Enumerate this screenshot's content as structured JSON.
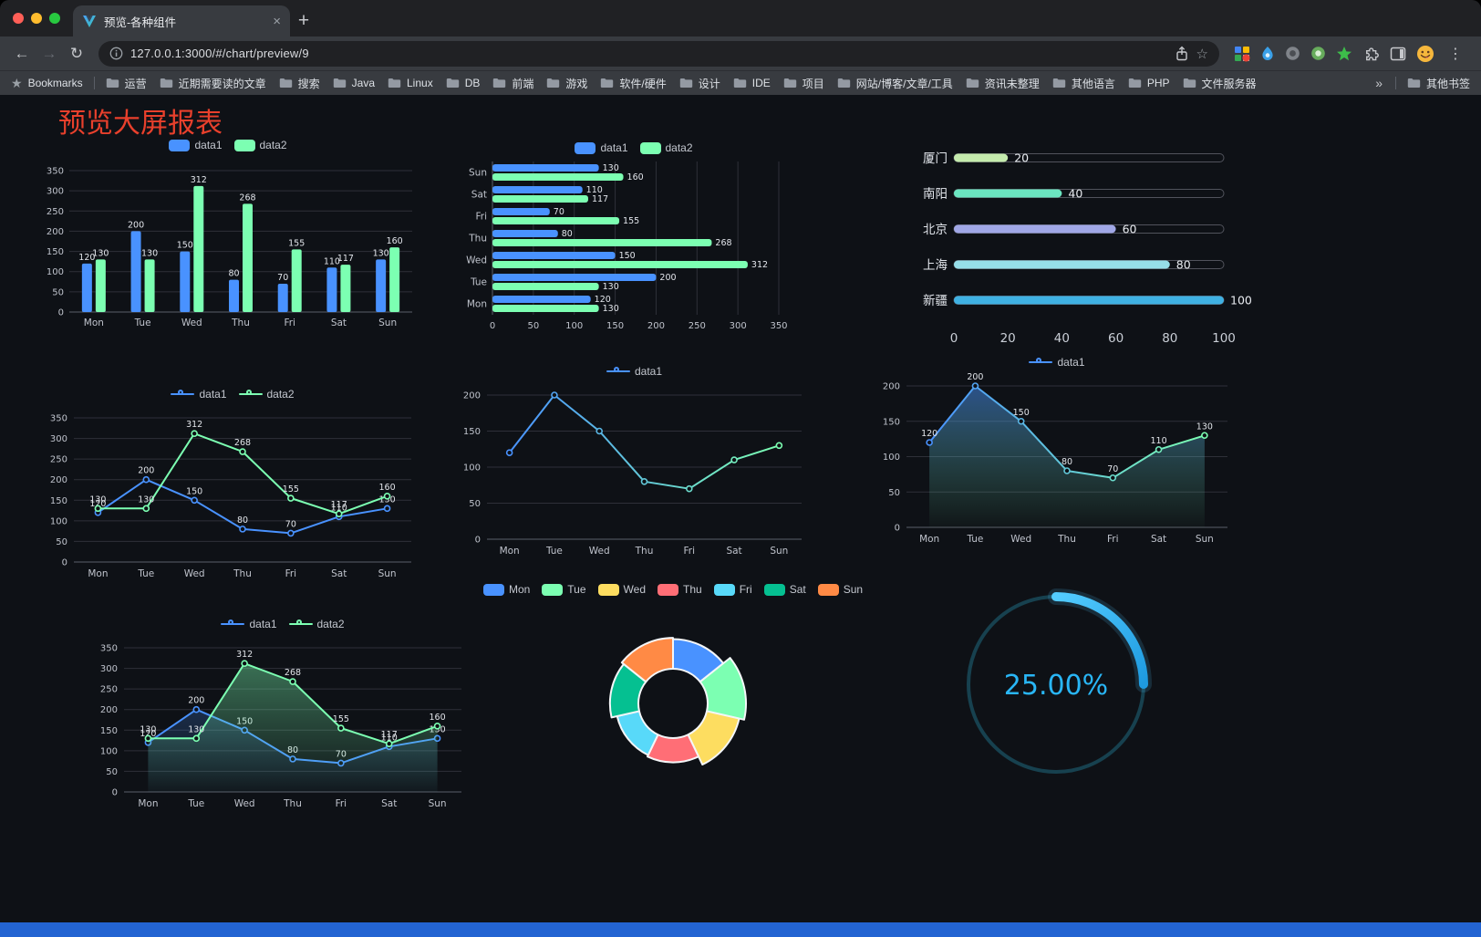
{
  "theme": {
    "page_bg": "#0e1116",
    "footer_bar": "#2364d2",
    "title_color": "#e8402c"
  },
  "browser": {
    "tab_title": "预览-各种组件",
    "url": "127.0.0.1:3000/#/chart/preview/9",
    "bookmarks_label": "Bookmarks",
    "bookmark_folders": [
      "运营",
      "近期需要读的文章",
      "搜索",
      "Java",
      "Linux",
      "DB",
      "前端",
      "游戏",
      "软件/硬件",
      "设计",
      "IDE",
      "项目",
      "网站/博客/文章/工具",
      "资讯未整理",
      "其他语言",
      "PHP",
      "文件服务器"
    ],
    "overflow_chevron": "»",
    "other_bookmarks_label": "其他书签",
    "new_tab_label": "+",
    "close_tab_label": "×",
    "back_label": "←",
    "forward_label": "→",
    "reload_label": "↻",
    "star_label": "☆",
    "menu_label": "⋮"
  },
  "page": {
    "title": "预览大屏报表"
  },
  "chart_data": [
    {
      "id": "bar-grouped",
      "type": "bar",
      "legend": true,
      "legend_icon": "pill",
      "categories": [
        "Mon",
        "Tue",
        "Wed",
        "Thu",
        "Fri",
        "Sat",
        "Sun"
      ],
      "ylim": [
        0,
        350
      ],
      "ytick": 50,
      "series": [
        {
          "name": "data1",
          "color": "#4992ff",
          "values": [
            120,
            200,
            150,
            80,
            70,
            110,
            130
          ]
        },
        {
          "name": "data2",
          "color": "#7cffb2",
          "values": [
            130,
            130,
            312,
            268,
            155,
            117,
            160
          ]
        }
      ]
    },
    {
      "id": "bar-horizontal",
      "type": "hbar",
      "legend": true,
      "legend_icon": "pill",
      "categories": [
        "Mon",
        "Tue",
        "Wed",
        "Thu",
        "Fri",
        "Sat",
        "Sun"
      ],
      "xlim": [
        0,
        350
      ],
      "xtick": 50,
      "series": [
        {
          "name": "data1",
          "color": "#4992ff",
          "values": [
            120,
            200,
            150,
            80,
            70,
            110,
            130
          ]
        },
        {
          "name": "data2",
          "color": "#7cffb2",
          "values": [
            130,
            130,
            312,
            268,
            155,
            117,
            160
          ]
        }
      ]
    },
    {
      "id": "progress-bars",
      "type": "progress",
      "xlim": [
        0,
        100
      ],
      "xticks": [
        0,
        20,
        40,
        60,
        80,
        100
      ],
      "rows": [
        {
          "label": "厦门",
          "value": 20,
          "color": "#c4ebad"
        },
        {
          "label": "南阳",
          "value": 40,
          "color": "#6be6c1"
        },
        {
          "label": "北京",
          "value": 60,
          "color": "#a0a7e6"
        },
        {
          "label": "上海",
          "value": 80,
          "color": "#96dee8"
        },
        {
          "label": "新疆",
          "value": 100,
          "color": "#3fb1e3"
        }
      ]
    },
    {
      "id": "line-two-series",
      "type": "line",
      "legend": true,
      "legend_icon": "line",
      "labels": true,
      "categories": [
        "Mon",
        "Tue",
        "Wed",
        "Thu",
        "Fri",
        "Sat",
        "Sun"
      ],
      "ylim": [
        0,
        350
      ],
      "ytick": 50,
      "series": [
        {
          "name": "data1",
          "color": "#4992ff",
          "values": [
            120,
            200,
            150,
            80,
            70,
            110,
            130
          ]
        },
        {
          "name": "data2",
          "color": "#7cffb2",
          "values": [
            130,
            130,
            312,
            268,
            155,
            117,
            160
          ]
        }
      ]
    },
    {
      "id": "line-gradient",
      "type": "line",
      "legend": true,
      "legend_icon": "line",
      "labels": false,
      "categories": [
        "Mon",
        "Tue",
        "Wed",
        "Thu",
        "Fri",
        "Sat",
        "Sun"
      ],
      "ylim": [
        0,
        200
      ],
      "ytick": 50,
      "series": [
        {
          "name": "data1",
          "color": "#4992ff",
          "color2": "#7cffb2",
          "values": [
            120,
            200,
            150,
            80,
            70,
            110,
            130
          ]
        }
      ]
    },
    {
      "id": "area-single",
      "type": "line",
      "legend": true,
      "legend_icon": "line",
      "labels": true,
      "categories": [
        "Mon",
        "Tue",
        "Wed",
        "Thu",
        "Fri",
        "Sat",
        "Sun"
      ],
      "ylim": [
        0,
        200
      ],
      "ytick": 50,
      "series": [
        {
          "name": "data1",
          "color": "#4992ff",
          "color2": "#7cffb2",
          "area": true,
          "area_opacity": 0.5,
          "values": [
            120,
            200,
            150,
            80,
            70,
            110,
            130
          ]
        }
      ]
    },
    {
      "id": "line-area-two",
      "type": "line",
      "legend": true,
      "legend_icon": "line",
      "labels": true,
      "categories": [
        "Mon",
        "Tue",
        "Wed",
        "Thu",
        "Fri",
        "Sat",
        "Sun"
      ],
      "ylim": [
        0,
        350
      ],
      "ytick": 50,
      "series": [
        {
          "name": "data1",
          "color": "#4992ff",
          "area": true,
          "area_opacity": 0.22,
          "values": [
            120,
            200,
            150,
            80,
            70,
            110,
            130
          ]
        },
        {
          "name": "data2",
          "color": "#7cffb2",
          "area": true,
          "area_opacity": 0.4,
          "values": [
            130,
            130,
            312,
            268,
            155,
            117,
            160
          ]
        }
      ]
    },
    {
      "id": "rose-pie",
      "type": "rose",
      "legend": true,
      "legend_icon": "pill",
      "inner_radius": 38,
      "outer_radius": 80,
      "items": [
        {
          "name": "Mon",
          "value": 120,
          "color": "#4992ff"
        },
        {
          "name": "Tue",
          "value": 200,
          "color": "#7cffb2"
        },
        {
          "name": "Wed",
          "value": 150,
          "color": "#fddd60"
        },
        {
          "name": "Thu",
          "value": 80,
          "color": "#ff6e76"
        },
        {
          "name": "Fri",
          "value": 70,
          "color": "#58d9f9"
        },
        {
          "name": "Sat",
          "value": 110,
          "color": "#05c091"
        },
        {
          "name": "Sun",
          "value": 130,
          "color": "#ff8a45"
        }
      ]
    },
    {
      "id": "gauge-percent",
      "type": "gauge",
      "value": 25,
      "label": "25.00%",
      "color": "#29b6f6",
      "ring_color": "#17414f",
      "arc_colors": [
        "#53ccff",
        "#1e9ae0"
      ]
    }
  ]
}
